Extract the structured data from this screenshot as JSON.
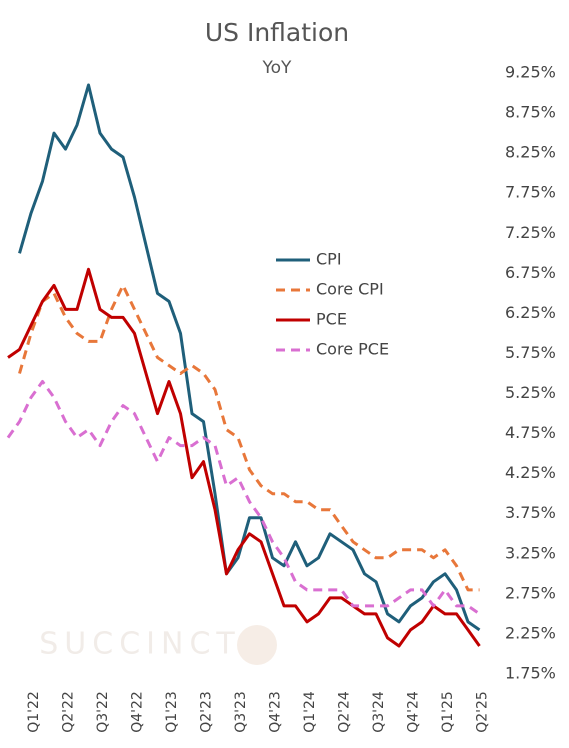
{
  "chart_data": {
    "type": "line",
    "title": "US Inflation",
    "subtitle": "YoY",
    "watermark": "SUCCINCT",
    "categories": [
      null,
      null,
      "Q1'22",
      null,
      null,
      "Q2'22",
      null,
      null,
      "Q3'22",
      null,
      null,
      "Q4'22",
      null,
      null,
      "Q1'23",
      null,
      null,
      "Q2'23",
      null,
      null,
      "Q3'23",
      null,
      null,
      "Q4'23",
      null,
      null,
      "Q1'24",
      null,
      null,
      "Q2'24",
      null,
      null,
      "Q3'24",
      null,
      null,
      "Q4'24",
      null,
      null,
      "Q1'25",
      null,
      null,
      "Q2'25"
    ],
    "series": [
      {
        "name": "CPI",
        "color": "#1f5f7a",
        "dashed": false,
        "values": [
          null,
          7.0,
          7.5,
          7.9,
          8.5,
          8.3,
          8.6,
          9.1,
          8.5,
          8.3,
          8.2,
          7.7,
          7.1,
          6.5,
          6.4,
          6.0,
          5.0,
          4.9,
          4.0,
          3.0,
          3.2,
          3.7,
          3.7,
          3.2,
          3.1,
          3.4,
          3.1,
          3.2,
          3.5,
          3.4,
          3.3,
          3.0,
          2.9,
          2.5,
          2.4,
          2.6,
          2.7,
          2.9,
          3.0,
          2.8,
          2.4,
          2.3
        ]
      },
      {
        "name": "Core CPI",
        "color": "#e8773a",
        "dashed": true,
        "values": [
          null,
          5.5,
          6.0,
          6.4,
          6.5,
          6.2,
          6.0,
          5.9,
          5.9,
          6.3,
          6.6,
          6.3,
          6.0,
          5.7,
          5.6,
          5.5,
          5.6,
          5.5,
          5.3,
          4.8,
          4.7,
          4.3,
          4.1,
          4.0,
          4.0,
          3.9,
          3.9,
          3.8,
          3.8,
          3.6,
          3.4,
          3.3,
          3.2,
          3.2,
          3.3,
          3.3,
          3.3,
          3.2,
          3.3,
          3.1,
          2.8,
          2.8
        ]
      },
      {
        "name": "PCE",
        "color": "#c00000",
        "dashed": false,
        "values": [
          5.7,
          5.8,
          6.1,
          6.4,
          6.6,
          6.3,
          6.3,
          6.8,
          6.3,
          6.2,
          6.2,
          6.0,
          5.5,
          5.0,
          5.4,
          5.0,
          4.2,
          4.4,
          3.8,
          3.0,
          3.3,
          3.5,
          3.4,
          3.0,
          2.6,
          2.6,
          2.4,
          2.5,
          2.7,
          2.7,
          2.6,
          2.5,
          2.5,
          2.2,
          2.1,
          2.3,
          2.4,
          2.6,
          2.5,
          2.5,
          2.3,
          2.1
        ]
      },
      {
        "name": "Core PCE",
        "color": "#d96fd1",
        "dashed": true,
        "values": [
          4.7,
          4.9,
          5.2,
          5.4,
          5.2,
          4.9,
          4.7,
          4.8,
          4.6,
          4.9,
          5.1,
          5.0,
          4.7,
          4.4,
          4.7,
          4.6,
          4.6,
          4.7,
          4.6,
          4.1,
          4.2,
          3.9,
          3.7,
          3.4,
          3.2,
          2.9,
          2.8,
          2.8,
          2.8,
          2.8,
          2.6,
          2.6,
          2.6,
          2.6,
          2.7,
          2.8,
          2.8,
          2.6,
          2.8,
          2.6,
          2.6,
          2.5
        ]
      }
    ],
    "ylim": [
      1.75,
      9.25
    ],
    "yticks": [
      {
        "value": 1.75,
        "label": "1.75%"
      },
      {
        "value": 2.25,
        "label": "2.25%"
      },
      {
        "value": 2.75,
        "label": "2.75%"
      },
      {
        "value": 3.25,
        "label": "3.25%"
      },
      {
        "value": 3.75,
        "label": "3.75%"
      },
      {
        "value": 4.25,
        "label": "4.25%"
      },
      {
        "value": 4.75,
        "label": "4.75%"
      },
      {
        "value": 5.25,
        "label": "5.25%"
      },
      {
        "value": 5.75,
        "label": "5.75%"
      },
      {
        "value": 6.25,
        "label": "6.25%"
      },
      {
        "value": 6.75,
        "label": "6.75%"
      },
      {
        "value": 7.25,
        "label": "7.25%"
      },
      {
        "value": 7.75,
        "label": "7.75%"
      },
      {
        "value": 8.25,
        "label": "8.25%"
      },
      {
        "value": 8.75,
        "label": "8.75%"
      },
      {
        "value": 9.25,
        "label": "9.25%"
      }
    ],
    "grid": false,
    "legend": "center"
  }
}
